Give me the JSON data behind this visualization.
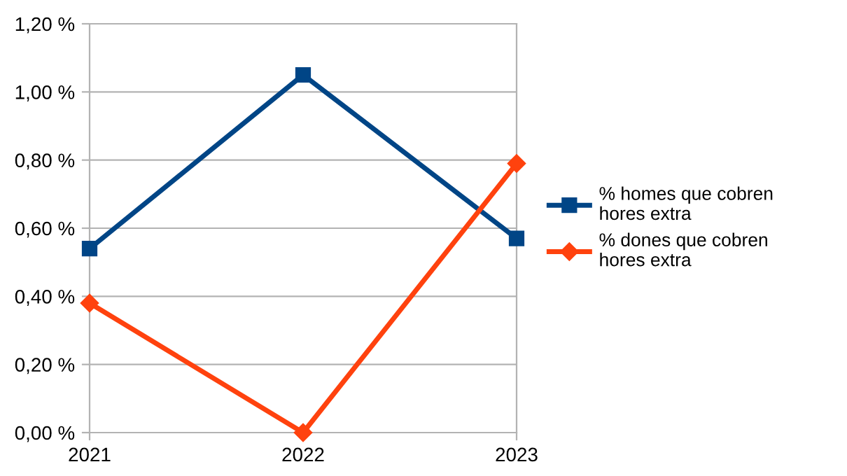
{
  "chart_data": {
    "type": "line",
    "categories": [
      "2021",
      "2022",
      "2023"
    ],
    "series": [
      {
        "name": "% homes que cobren hores extra",
        "color": "#004586",
        "marker": "square",
        "values": [
          0.54,
          1.05,
          0.57
        ]
      },
      {
        "name": "% dones que cobren hores extra",
        "color": "#ff420e",
        "marker": "diamond",
        "values": [
          0.38,
          0.0,
          0.79
        ]
      }
    ],
    "ylim": [
      0,
      1.2
    ],
    "yticks": [
      {
        "value": 0,
        "label": "0,00 %"
      },
      {
        "value": 0.2,
        "label": "0,20 %"
      },
      {
        "value": 0.4,
        "label": "0,40 %"
      },
      {
        "value": 0.6,
        "label": "0,60 %"
      },
      {
        "value": 0.8,
        "label": "0,80 %"
      },
      {
        "value": 1.0,
        "label": "1,00 %"
      },
      {
        "value": 1.2,
        "label": "1,20 %"
      }
    ],
    "grid": "y",
    "legend": "right",
    "line_style": "solid"
  }
}
